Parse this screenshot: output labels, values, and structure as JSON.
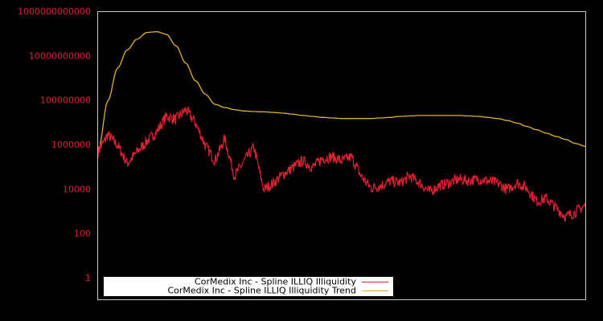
{
  "chart_data": {
    "type": "line",
    "title": "",
    "xlabel": "",
    "ylabel": "",
    "yscale": "log",
    "ylim": [
      0.3,
      1000000000000.0
    ],
    "y_ticks": [
      {
        "value": 1000000000000.0,
        "label": "1000000000000"
      },
      {
        "value": 10000000000.0,
        "label": "10000000000"
      },
      {
        "value": 100000000.0,
        "label": "100000000"
      },
      {
        "value": 1000000.0,
        "label": "1000000"
      },
      {
        "value": 10000.0,
        "label": "10000"
      },
      {
        "value": 100.0,
        "label": "100"
      },
      {
        "value": 1,
        "label": "1"
      }
    ],
    "grid": false,
    "legend_position": "lower left",
    "x": [
      0,
      0.02,
      0.04,
      0.06,
      0.08,
      0.1,
      0.12,
      0.14,
      0.16,
      0.18,
      0.2,
      0.22,
      0.24,
      0.26,
      0.28,
      0.3,
      0.32,
      0.34,
      0.36,
      0.38,
      0.4,
      0.42,
      0.44,
      0.46,
      0.48,
      0.5,
      0.52,
      0.54,
      0.56,
      0.58,
      0.6,
      0.62,
      0.64,
      0.66,
      0.68,
      0.7,
      0.72,
      0.74,
      0.76,
      0.78,
      0.8,
      0.82,
      0.84,
      0.86,
      0.88,
      0.9,
      0.92,
      0.94,
      0.96,
      0.98,
      1.0
    ],
    "series": [
      {
        "name": "CorMedix Inc - Spline ILLIQ Illiquidity",
        "color": "#e0202e",
        "values": [
          500000.0,
          3000000.0,
          1000000.0,
          150000.0,
          500000.0,
          1500000.0,
          4000000.0,
          20000000.0,
          15000000.0,
          40000000.0,
          10000000.0,
          1000000.0,
          200000.0,
          2000000.0,
          40000.0,
          200000.0,
          800000.0,
          10000.0,
          20000.0,
          50000.0,
          100000.0,
          200000.0,
          100000.0,
          250000.0,
          300000.0,
          200000.0,
          300000.0,
          40000.0,
          12000.0,
          15000.0,
          25000.0,
          20000.0,
          40000.0,
          20000.0,
          8000.0,
          15000.0,
          20000.0,
          30000.0,
          25000.0,
          30000.0,
          25000.0,
          20000.0,
          10000.0,
          20000.0,
          12000.0,
          3000.0,
          4000.0,
          1500.0,
          600.0,
          1000.0,
          2000.0
        ]
      },
      {
        "name": "CorMedix Inc - Spline ILLIQ Illiquidity Trend",
        "color": "#e0b030",
        "values": [
          500000.0,
          100000000.0,
          3000000000.0,
          20000000000.0,
          60000000000.0,
          120000000000.0,
          130000000000.0,
          100000000000.0,
          30000000000.0,
          5000000000.0,
          800000000.0,
          200000000.0,
          70000000.0,
          50000000.0,
          40000000.0,
          35000000.0,
          33000000.0,
          32000000.0,
          30000000.0,
          28000000.0,
          25000000.0,
          22000000.0,
          20000000.0,
          18000000.0,
          17000000.0,
          16000000.0,
          16000000.0,
          16000000.0,
          16000000.0,
          17000000.0,
          18000000.0,
          20000000.0,
          21000000.0,
          22000000.0,
          22000000.0,
          22000000.0,
          22000000.0,
          22000000.0,
          21000000.0,
          20000000.0,
          18000000.0,
          16000000.0,
          13000000.0,
          10000000.0,
          7000000.0,
          5000000.0,
          3500000.0,
          2500000.0,
          1800000.0,
          1200000.0,
          900000.0
        ]
      }
    ]
  },
  "legend": {
    "items": [
      {
        "label": "CorMedix Inc - Spline ILLIQ Illiquidity",
        "color": "#e0202e"
      },
      {
        "label": "CorMedix Inc - Spline ILLIQ Illiquidity Trend",
        "color": "#e0b030"
      }
    ]
  },
  "colors": {
    "background": "#000000",
    "frame": "#c8c8c8",
    "tick_label": "#e0202e",
    "legend_bg": "#ffffff"
  }
}
